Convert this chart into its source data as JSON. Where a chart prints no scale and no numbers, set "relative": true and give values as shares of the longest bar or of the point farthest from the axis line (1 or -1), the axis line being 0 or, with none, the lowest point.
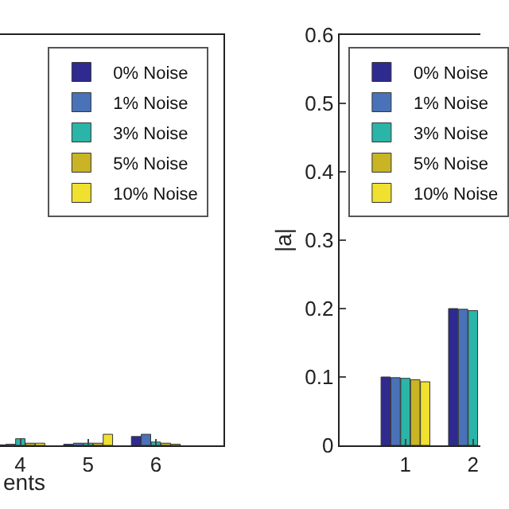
{
  "chart_data": [
    {
      "type": "bar",
      "xlabel": "ents",
      "categories": [
        "4",
        "5",
        "6"
      ],
      "relative": true,
      "legend": "top right",
      "series": [
        {
          "name": "0% Noise",
          "color": "#2e2a8f",
          "values": [
            0.05,
            0.1,
            0.8
          ]
        },
        {
          "name": "1% Noise",
          "color": "#4a72b8",
          "values": [
            0.1,
            0.2,
            1
          ]
        },
        {
          "name": "3% Noise",
          "color": "#2bb5a8",
          "values": [
            0.6,
            0.2,
            0.3
          ]
        },
        {
          "name": "5% Noise",
          "color": "#c9b425",
          "values": [
            0.2,
            0.2,
            0.2
          ]
        },
        {
          "name": "10% Noise",
          "color": "#f0e030",
          "values": [
            0.2,
            1,
            0.1
          ]
        }
      ]
    },
    {
      "type": "bar",
      "ylabel": "|a|",
      "categories": [
        "1",
        "2"
      ],
      "ylim": [
        0,
        0.6
      ],
      "yticks": [
        0,
        0.1,
        0.2,
        0.3,
        0.4,
        0.5,
        0.6
      ],
      "legend": "top right",
      "series": [
        {
          "name": "0% Noise",
          "color": "#2e2a8f",
          "values": [
            0.1,
            0.2
          ]
        },
        {
          "name": "1% Noise",
          "color": "#4a72b8",
          "values": [
            0.099,
            0.199
          ]
        },
        {
          "name": "3% Noise",
          "color": "#2bb5a8",
          "values": [
            0.098,
            0.197
          ]
        },
        {
          "name": "5% Noise",
          "color": "#c9b425",
          "values": [
            0.096,
            null
          ]
        },
        {
          "name": "10% Noise",
          "color": "#f0e030",
          "values": [
            0.093,
            null
          ]
        }
      ]
    }
  ]
}
